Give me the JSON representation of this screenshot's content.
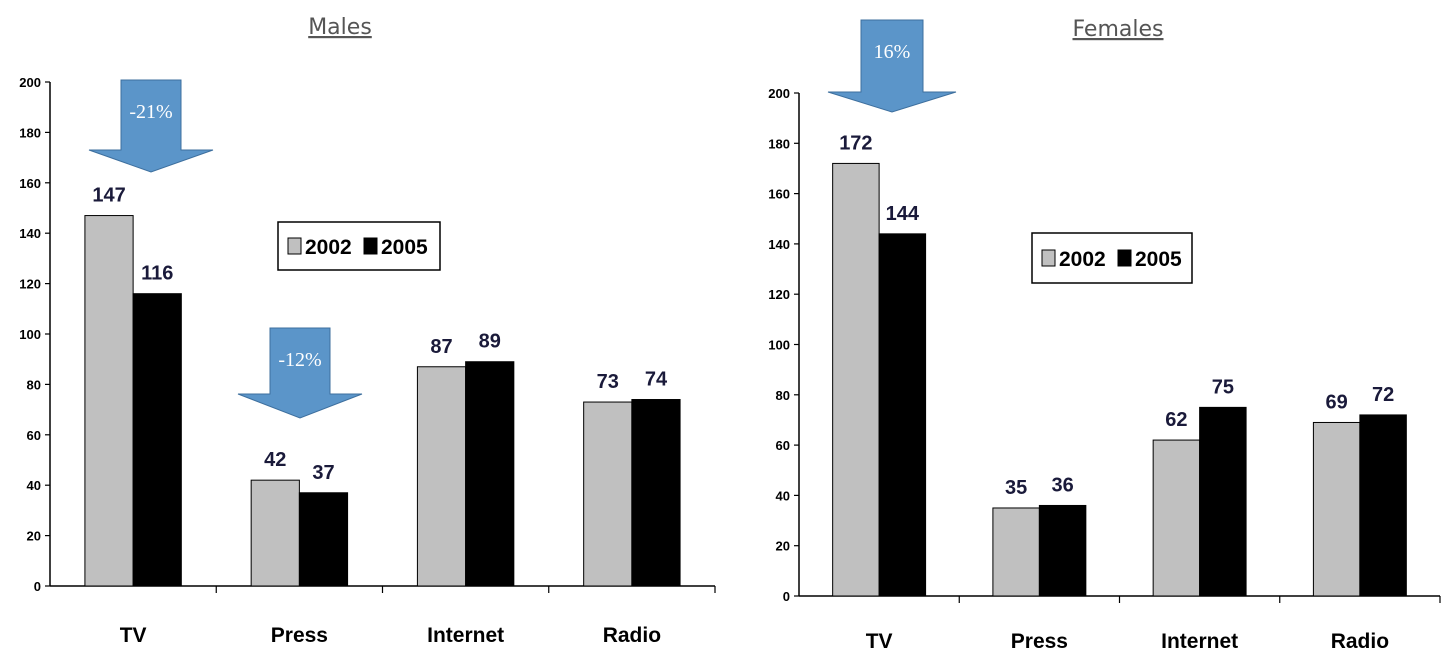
{
  "colors": {
    "series_2002": "#c0c0c0",
    "series_2005": "#000000",
    "arrow_fill": "#5b95c9",
    "arrow_stroke": "#3d6f9e"
  },
  "chart_data": [
    {
      "type": "bar",
      "title": "Males",
      "categories": [
        "TV",
        "Press",
        "Internet",
        "Radio"
      ],
      "series": [
        {
          "name": "2002",
          "values": [
            147,
            42,
            87,
            73
          ]
        },
        {
          "name": "2005",
          "values": [
            116,
            37,
            89,
            74
          ]
        }
      ],
      "ylim": [
        0,
        200
      ],
      "yticks": [
        0,
        20,
        40,
        60,
        80,
        100,
        120,
        140,
        160,
        180,
        200
      ],
      "legend": {
        "placement": "center",
        "labels": [
          "2002",
          "2005"
        ]
      },
      "annotations": [
        {
          "category": "TV",
          "text": "-21%"
        },
        {
          "category": "Press",
          "text": "-12%"
        }
      ],
      "grid": false
    },
    {
      "type": "bar",
      "title": "Females",
      "categories": [
        "TV",
        "Press",
        "Internet",
        "Radio"
      ],
      "series": [
        {
          "name": "2002",
          "values": [
            172,
            35,
            62,
            69
          ]
        },
        {
          "name": "2005",
          "values": [
            144,
            36,
            75,
            72
          ]
        }
      ],
      "ylim": [
        0,
        200
      ],
      "yticks": [
        0,
        20,
        40,
        60,
        80,
        100,
        120,
        140,
        160,
        180,
        200
      ],
      "legend": {
        "placement": "center",
        "labels": [
          "2002",
          "2005"
        ]
      },
      "annotations": [
        {
          "category": "TV",
          "text": "16%"
        }
      ],
      "grid": false
    }
  ]
}
